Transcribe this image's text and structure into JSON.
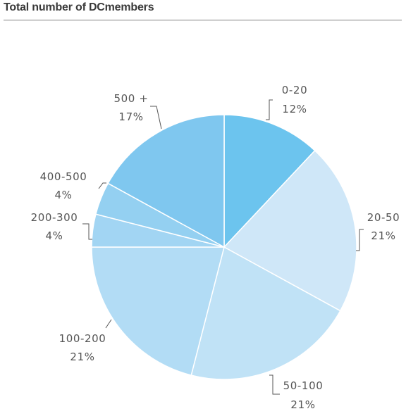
{
  "title": "Total number of DCmembers",
  "chart_data": {
    "type": "pie",
    "title": "Total number of DCmembers",
    "slices": [
      {
        "label": "0-20",
        "percent_label": "12%",
        "value": 12,
        "color": "#6cc4ee"
      },
      {
        "label": "20-50",
        "percent_label": "21%",
        "value": 21,
        "color": "#cfe7f8"
      },
      {
        "label": "50-100",
        "percent_label": "21%",
        "value": 21,
        "color": "#c0e2f6"
      },
      {
        "label": "100-200",
        "percent_label": "21%",
        "value": 21,
        "color": "#b2dcf5"
      },
      {
        "label": "200-300",
        "percent_label": "4%",
        "value": 4,
        "color": "#a2d5f3"
      },
      {
        "label": "400-500",
        "percent_label": "4%",
        "value": 4,
        "color": "#94d0f1"
      },
      {
        "label": "500 +",
        "percent_label": "17%",
        "value": 17,
        "color": "#7fc7ef"
      }
    ]
  }
}
